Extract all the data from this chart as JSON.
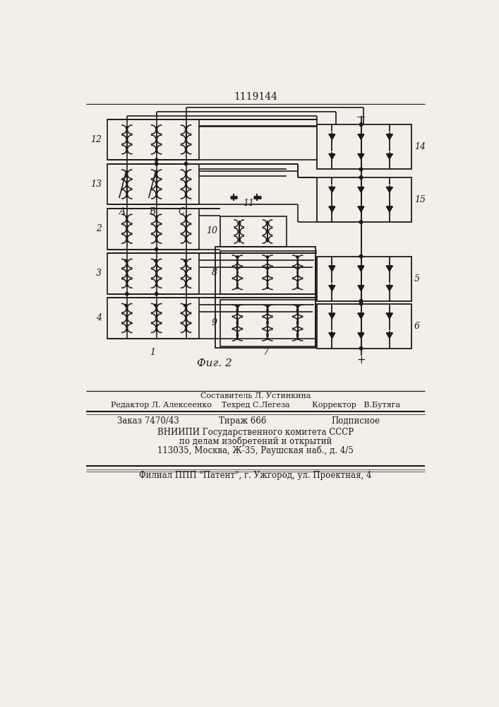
{
  "title": "1119144",
  "fig_label": "Фиг. 2",
  "bg_color": "#f2efe8",
  "lc": "#1a1a1a",
  "footer": [
    [
      353,
      572,
      "center",
      "Составитель Л. Устинкина",
      8.0
    ],
    [
      353,
      588,
      "center",
      "Редактор Л. Алексеенко    Техред С.Легеза         Корректор   В.Бутяга",
      8.0
    ],
    [
      100,
      618,
      "left",
      "Заказ 7470/43",
      8.5
    ],
    [
      330,
      618,
      "center",
      "Тираж 666",
      8.5
    ],
    [
      580,
      618,
      "right",
      "Подписное",
      8.5
    ],
    [
      353,
      638,
      "center",
      "ВНИИПИ Государственного комитета СССР",
      8.5
    ],
    [
      353,
      655,
      "center",
      "по делам изобретений и открытий",
      8.5
    ],
    [
      353,
      672,
      "center",
      "113035, Москва, Ж-35, Раушская наб., д. 4/5",
      8.5
    ],
    [
      353,
      718,
      "center",
      "Филиал ППП \"Патент\", г. Ужгород, ул. Проектная, 4",
      8.5
    ]
  ]
}
